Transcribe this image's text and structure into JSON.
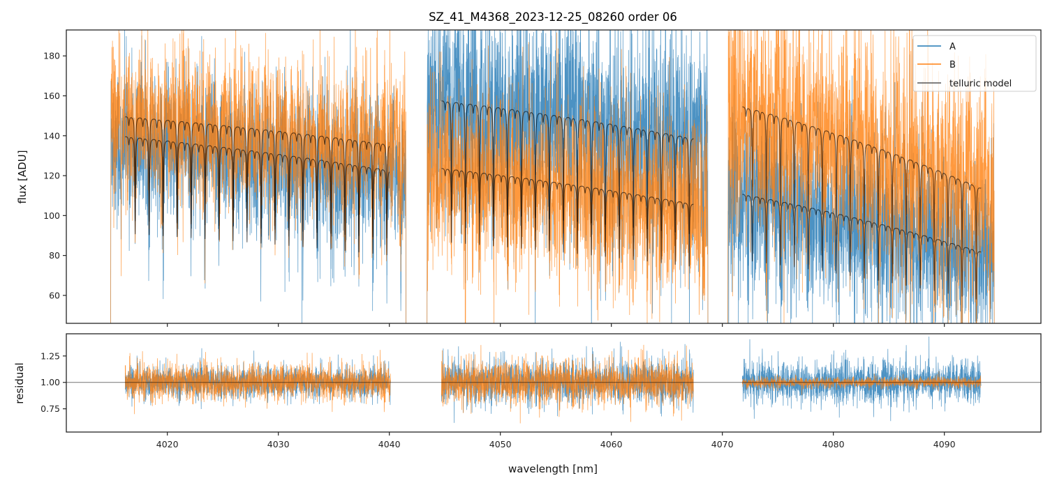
{
  "chart_data": [
    {
      "type": "line",
      "panel": "top",
      "title": "SZ_41_M4368_2023-12-25_08260  order 06",
      "xlabel": "",
      "ylabel": "flux [ADU]",
      "xlim": [
        4010.9,
        4098.7
      ],
      "ylim": [
        46,
        193
      ],
      "xticks": [
        4020,
        4030,
        4040,
        4050,
        4060,
        4070,
        4080,
        4090
      ],
      "xtick_labels_visible": false,
      "yticks": [
        60,
        80,
        100,
        120,
        140,
        160,
        180
      ],
      "ytick_labels": [
        "60",
        "80",
        "100",
        "120",
        "140",
        "160",
        "180"
      ],
      "grid": false,
      "legend": {
        "placement": "top-right",
        "entries": [
          {
            "label": "A",
            "color": "#1f77b4"
          },
          {
            "label": "B",
            "color": "#ff7f0e"
          },
          {
            "label": "telluric model",
            "color": "#555555"
          }
        ]
      },
      "telluric_line_spacing_nm": 1.26,
      "segments": [
        {
          "data_range": [
            4014.9,
            4041.5
          ],
          "model_range": [
            4016.2,
            4040.0
          ],
          "A": {
            "continuum_start": 140,
            "continuum_end": 123,
            "noise": 18
          },
          "B": {
            "continuum_start": 150,
            "continuum_end": 136,
            "noise": 18
          },
          "model_A": {
            "start": 140,
            "end": 123,
            "line_depth": 0.35
          },
          "model_B": {
            "start": 150,
            "end": 136,
            "line_depth": 0.35
          }
        },
        {
          "data_range": [
            4043.4,
            4068.7
          ],
          "model_range": [
            4044.7,
            4067.4
          ],
          "A": {
            "continuum_start": 158,
            "continuum_end": 139,
            "noise": 28
          },
          "B": {
            "continuum_start": 124,
            "continuum_end": 106,
            "noise": 22
          },
          "model_A": {
            "start": 158,
            "end": 139,
            "line_depth": 0.35
          },
          "model_B": {
            "start": 124,
            "end": 106,
            "line_depth": 0.3
          }
        },
        {
          "data_range": [
            4070.5,
            4094.5
          ],
          "model_range": [
            4071.8,
            4093.3
          ],
          "A": {
            "continuum_start": 111,
            "continuum_end": 82,
            "noise": 22
          },
          "B": {
            "continuum_start": 155,
            "continuum_end": 114,
            "noise": 28
          },
          "model_A": {
            "start": 111,
            "end": 82,
            "line_depth": 0.3
          },
          "model_B": {
            "start": 155,
            "end": 114,
            "line_depth": 0.3
          }
        }
      ]
    },
    {
      "type": "line",
      "panel": "bottom",
      "title": "",
      "xlabel": "wavelength [nm]",
      "ylabel": "residual",
      "xlim": [
        4010.9,
        4098.7
      ],
      "ylim": [
        0.53,
        1.46
      ],
      "xticks": [
        4020,
        4030,
        4040,
        4050,
        4060,
        4070,
        4080,
        4090
      ],
      "xtick_labels": [
        "4020",
        "4030",
        "4040",
        "4050",
        "4060",
        "4070",
        "4080",
        "4090"
      ],
      "yticks": [
        0.75,
        1.0,
        1.25
      ],
      "ytick_labels": [
        "0.75",
        "1.00",
        "1.25"
      ],
      "reference_line": 1.0,
      "grid": false,
      "segments": [
        {
          "range": [
            4016.2,
            4040.1
          ],
          "A_noise": 0.12,
          "B_noise": 0.14
        },
        {
          "range": [
            4044.7,
            4067.4
          ],
          "A_noise": 0.17,
          "B_noise": 0.17
        },
        {
          "range": [
            4071.8,
            4093.3
          ],
          "A_noise": 0.16,
          "B_noise": 0.04
        }
      ]
    }
  ]
}
